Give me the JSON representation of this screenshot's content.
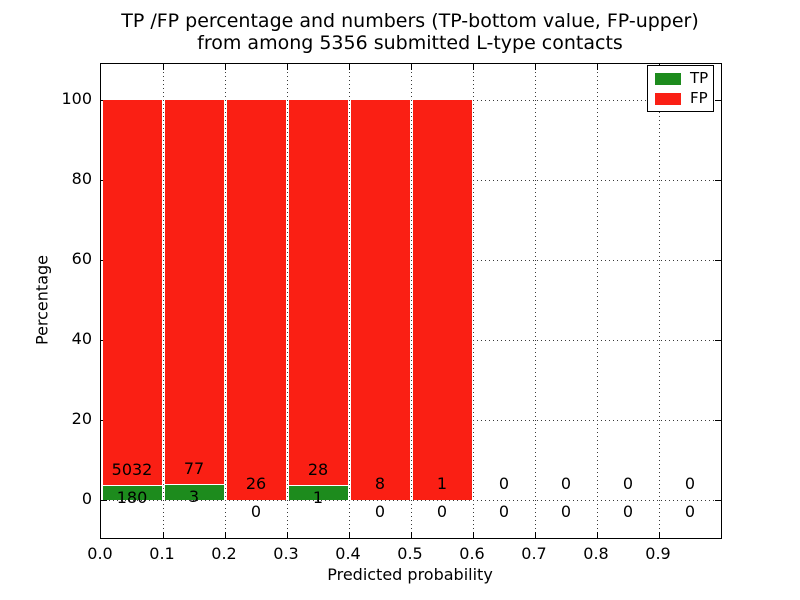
{
  "title": {
    "line1": "TP /FP percentage and numbers (TP-bottom value, FP-upper)",
    "line2": "from among 5356 submitted L-type contacts"
  },
  "axes": {
    "xlabel": "Predicted probability",
    "ylabel": "Percentage",
    "x_tick_labels": [
      "0.0",
      "0.1",
      "0.2",
      "0.3",
      "0.4",
      "0.5",
      "0.6",
      "0.7",
      "0.8",
      "0.9"
    ],
    "y_tick_labels": [
      "0",
      "20",
      "40",
      "60",
      "80",
      "100"
    ],
    "y_tick_values": [
      0,
      20,
      40,
      60,
      80,
      100
    ]
  },
  "legend": {
    "items": [
      {
        "label": "TP",
        "color": "#1d8b1d"
      },
      {
        "label": "FP",
        "color": "#fa1f14"
      }
    ]
  },
  "colors": {
    "tp_green": "#1d8b1d",
    "fp_red": "#fa1f14",
    "grid": "#3a3a3a",
    "background": "#ffffff",
    "text": "#000000"
  },
  "chart_data": {
    "type": "bar",
    "stacked": true,
    "title": "TP /FP percentage and numbers (TP-bottom value, FP-upper) from among 5356 submitted L-type contacts",
    "xlabel": "Predicted probability",
    "ylabel": "Percentage",
    "xlim": [
      0.0,
      1.0
    ],
    "ylim": [
      -10,
      110
    ],
    "grid": "dotted",
    "legend_position": "upper right",
    "bin_width": 0.1,
    "bin_starts": [
      0.0,
      0.1,
      0.2,
      0.3,
      0.4,
      0.5,
      0.6,
      0.7,
      0.8,
      0.9
    ],
    "total_submitted": 5356,
    "bar_height_mode": "TP and FP counts normalized to 100% per bin; bins with zero total have no bar",
    "series": [
      {
        "name": "TP",
        "position": "bottom",
        "color": "#1d8b1d",
        "counts": [
          180,
          3,
          0,
          1,
          0,
          0,
          0,
          0,
          0,
          0
        ]
      },
      {
        "name": "FP",
        "position": "upper",
        "color": "#fa1f14",
        "counts": [
          5032,
          77,
          26,
          28,
          8,
          1,
          0,
          0,
          0,
          0
        ]
      }
    ]
  }
}
